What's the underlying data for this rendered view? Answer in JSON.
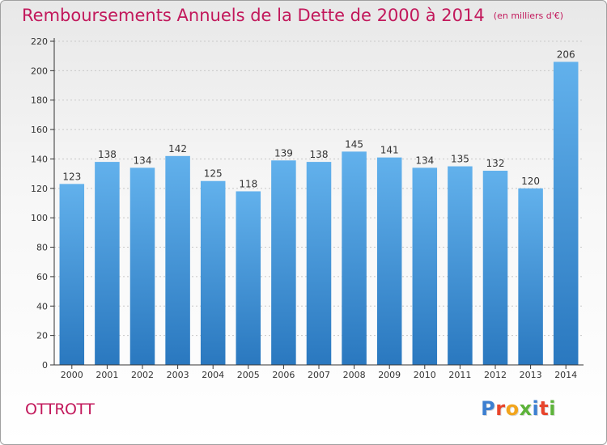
{
  "title": "Remboursements Annuels de la Dette de 2000 à 2014",
  "unit_note": "(en milliers d'€)",
  "commune": "OTTROTT",
  "logo": {
    "letters": [
      "P",
      "r",
      "o",
      "x",
      "i",
      "t",
      "i"
    ],
    "colors": [
      "#3c7fd1",
      "#e8452c",
      "#f2a51d",
      "#5db33a",
      "#3c7fd1",
      "#e8452c",
      "#5db33a"
    ]
  },
  "colors": {
    "title": "#c2185b",
    "bar_top": "#62b1ec",
    "bar_bottom": "#2a78bf",
    "axis": "#333333"
  },
  "chart_data": {
    "type": "bar",
    "categories": [
      "2000",
      "2001",
      "2002",
      "2003",
      "2004",
      "2005",
      "2006",
      "2007",
      "2008",
      "2009",
      "2010",
      "2011",
      "2012",
      "2013",
      "2014"
    ],
    "values": [
      123,
      138,
      134,
      142,
      125,
      118,
      139,
      138,
      145,
      141,
      134,
      135,
      132,
      120,
      206
    ],
    "ylim": [
      0,
      220
    ],
    "yticks": [
      0,
      20,
      40,
      60,
      80,
      100,
      120,
      140,
      160,
      180,
      200,
      220
    ],
    "grid": true
  }
}
